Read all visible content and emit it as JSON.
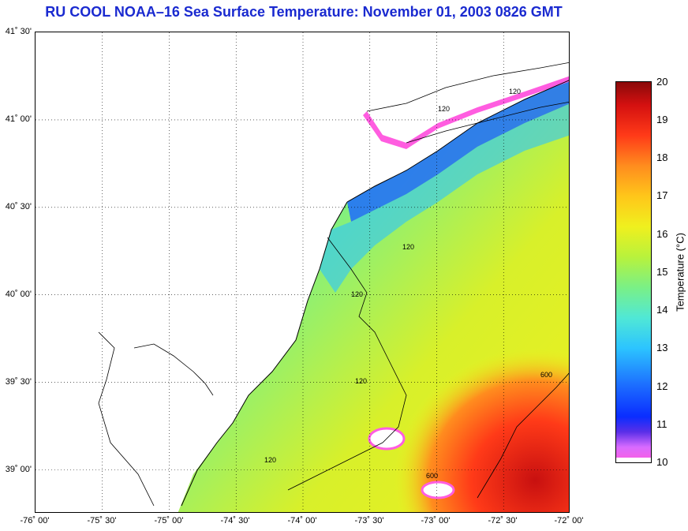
{
  "title": "RU COOL  NOAA–16  Sea Surface Temperature:  November 01, 2003 0826 GMT",
  "map": {
    "lat_labels": [
      "41˚ 30'",
      "41˚ 00'",
      "40˚ 30'",
      "40˚ 00'",
      "39˚ 30'",
      "39˚ 00'"
    ],
    "lon_labels": [
      "-76˚ 00'",
      "-75˚ 30'",
      "-75˚ 00'",
      "-74˚ 30'",
      "-74˚ 00'",
      "-73˚ 30'",
      "-73˚ 00'",
      "-72˚ 30'",
      "-72˚ 00'"
    ],
    "lat_range": [
      38.75,
      41.5
    ],
    "lon_range": [
      -76.0,
      -72.0
    ],
    "isobath_labels": [
      "120",
      "120",
      "120",
      "120",
      "120",
      "120",
      "600",
      "600"
    ],
    "colors": {
      "land": "#ffffff",
      "cloud_edge": "#ff5de0",
      "cold": "#1c6bff",
      "cool": "#2cc4ff",
      "mid": "#7af086",
      "warm": "#f0f01e",
      "hot": "#ff3a18",
      "hottest": "#c81010"
    }
  },
  "colorbar": {
    "label": "Temperature (°C)",
    "min": 10,
    "max": 20,
    "ticks": [
      "20",
      "19",
      "18",
      "17",
      "16",
      "15",
      "14",
      "13",
      "12",
      "11",
      "10"
    ]
  }
}
